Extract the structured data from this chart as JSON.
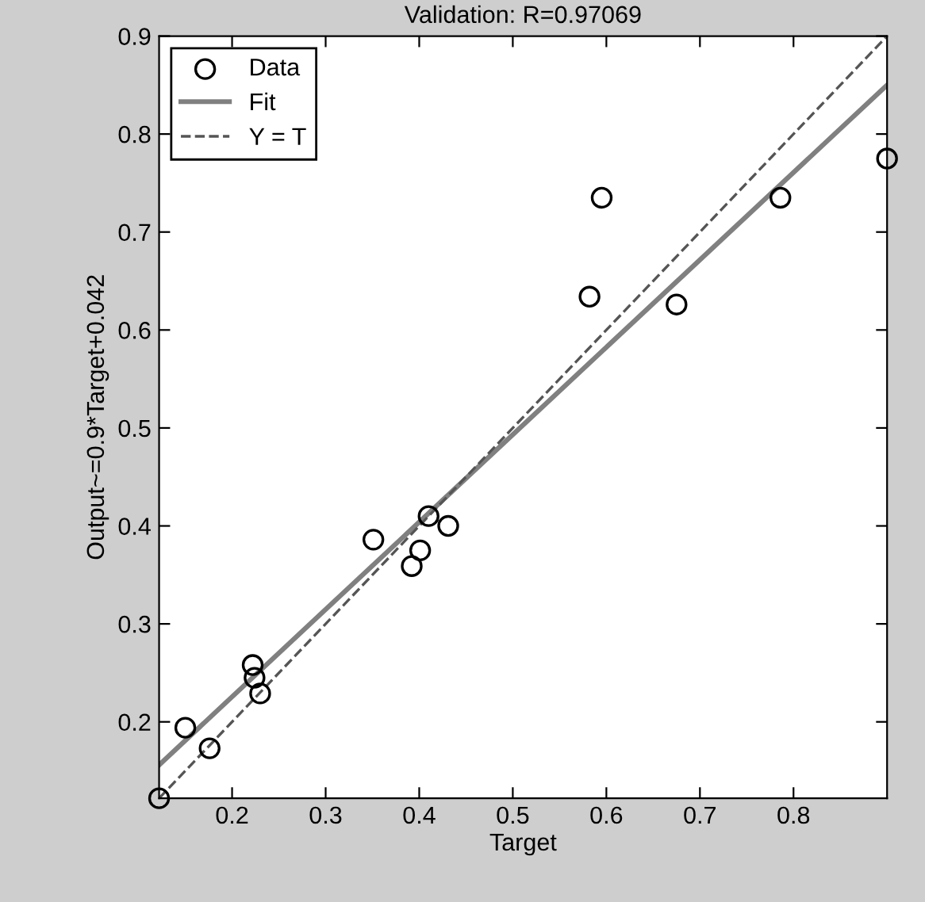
{
  "chart_data": {
    "type": "scatter",
    "title": "Validation: R=0.97069",
    "xlabel": "Target",
    "ylabel": "Output~=0.9*Target+0.042",
    "series": [
      {
        "name": "Data",
        "marker": "circle",
        "color": "#000000",
        "x": [
          0.122,
          0.15,
          0.176,
          0.222,
          0.224,
          0.23,
          0.351,
          0.392,
          0.401,
          0.41,
          0.431,
          0.582,
          0.675,
          0.595,
          0.786,
          0.9
        ],
        "values": [
          0.122,
          0.194,
          0.173,
          0.258,
          0.245,
          0.229,
          0.386,
          0.359,
          0.375,
          0.41,
          0.4,
          0.634,
          0.626,
          0.735,
          0.735,
          0.775
        ]
      },
      {
        "name": "Fit",
        "type": "line",
        "line_style": "solid",
        "color": "#808080",
        "x": [
          0.122,
          0.9
        ],
        "values": [
          0.156,
          0.85
        ]
      },
      {
        "name": "Y = T",
        "type": "line",
        "line_style": "dashed",
        "color": "#555555",
        "x": [
          0.122,
          0.9
        ],
        "values": [
          0.122,
          0.9
        ]
      }
    ],
    "xlim": [
      0.122,
      0.9
    ],
    "ylim": [
      0.122,
      0.9
    ],
    "xticks": [
      0.2,
      0.3,
      0.4,
      0.5,
      0.6,
      0.7,
      0.8
    ],
    "yticks": [
      0.2,
      0.3,
      0.4,
      0.5,
      0.6,
      0.7,
      0.8,
      0.9
    ],
    "grid": false,
    "legend": "top left"
  }
}
